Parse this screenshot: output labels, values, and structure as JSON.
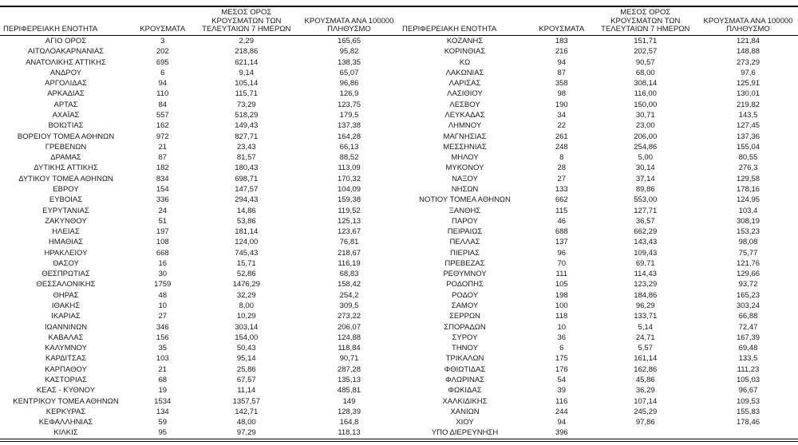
{
  "colors": {
    "text": "#1a1a1a",
    "border": "#000000",
    "background": "#ffffff"
  },
  "columns": {
    "region": "ΠΕΡΙΦΕΡΕΙΑΚΗ ΕΝΟΤΗΤΑ",
    "cases": "ΚΡΟΥΣΜΑΤΑ",
    "avg7_line1": "ΜΕΣΟΣ ΟΡΟΣ",
    "avg7_line2": "ΚΡΟΥΣΜΑΤΩΝ ΤΩΝ",
    "avg7_line3": "ΤΕΛΕΥΤΑΙΩΝ 7 ΗΜΕΡΩΝ",
    "per100k_line1": "ΚΡΟΥΣΜΑΤΑ ΑΝΑ 100000",
    "per100k_line2": "ΠΛΗΘΥΣΜΟ"
  },
  "left_table": {
    "rows": [
      {
        "region": "ΑΓΙΟ ΟΡΟΣ",
        "cases": "3",
        "avg7": "2,29",
        "per100k": "165,65"
      },
      {
        "region": "ΑΙΤΩΛΟΑΚΑΡΝΑΝΙΑΣ",
        "cases": "202",
        "avg7": "218,86",
        "per100k": "95,82"
      },
      {
        "region": "ΑΝΑΤΟΛΙΚΗΣ ΑΤΤΙΚΗΣ",
        "cases": "695",
        "avg7": "621,14",
        "per100k": "138,35"
      },
      {
        "region": "ΑΝΔΡΟΥ",
        "cases": "6",
        "avg7": "9,14",
        "per100k": "65,07"
      },
      {
        "region": "ΑΡΓΟΛΙΔΑΣ",
        "cases": "94",
        "avg7": "105,14",
        "per100k": "96,86"
      },
      {
        "region": "ΑΡΚΑΔΙΑΣ",
        "cases": "110",
        "avg7": "115,71",
        "per100k": "126,9"
      },
      {
        "region": "ΑΡΤΑΣ",
        "cases": "84",
        "avg7": "73,29",
        "per100k": "123,75"
      },
      {
        "region": "ΑΧΑΪΑΣ",
        "cases": "557",
        "avg7": "518,29",
        "per100k": "179,5"
      },
      {
        "region": "ΒΟΙΩΤΙΑΣ",
        "cases": "162",
        "avg7": "149,43",
        "per100k": "137,38"
      },
      {
        "region": "ΒΟΡΕΙΟΥ ΤΟΜΕΑ ΑΘΗΝΩΝ",
        "cases": "972",
        "avg7": "827,71",
        "per100k": "164,28"
      },
      {
        "region": "ΓΡΕΒΕΝΩΝ",
        "cases": "21",
        "avg7": "23,43",
        "per100k": "66,13"
      },
      {
        "region": "ΔΡΑΜΑΣ",
        "cases": "87",
        "avg7": "81,57",
        "per100k": "88,52"
      },
      {
        "region": "ΔΥΤΙΚΗΣ ΑΤΤΙΚΗΣ",
        "cases": "182",
        "avg7": "180,43",
        "per100k": "113,09"
      },
      {
        "region": "ΔΥΤΙΚΟΥ ΤΟΜΕΑ ΑΘΗΝΩΝ",
        "cases": "834",
        "avg7": "698,71",
        "per100k": "170,32"
      },
      {
        "region": "ΕΒΡΟΥ",
        "cases": "154",
        "avg7": "147,57",
        "per100k": "104,09"
      },
      {
        "region": "ΕΥΒΟΙΑΣ",
        "cases": "336",
        "avg7": "294,43",
        "per100k": "159,38"
      },
      {
        "region": "ΕΥΡΥΤΑΝΙΑΣ",
        "cases": "24",
        "avg7": "14,86",
        "per100k": "119,52"
      },
      {
        "region": "ΖΑΚΥΝΘΟΥ",
        "cases": "51",
        "avg7": "53,86",
        "per100k": "125,13"
      },
      {
        "region": "ΗΛΕΙΑΣ",
        "cases": "197",
        "avg7": "181,14",
        "per100k": "123,67"
      },
      {
        "region": "ΗΜΑΘΙΑΣ",
        "cases": "108",
        "avg7": "124,00",
        "per100k": "76,81"
      },
      {
        "region": "ΗΡΑΚΛΕΙΟΥ",
        "cases": "668",
        "avg7": "745,43",
        "per100k": "218,67"
      },
      {
        "region": "ΘΑΣΟΥ",
        "cases": "16",
        "avg7": "15,71",
        "per100k": "116,19"
      },
      {
        "region": "ΘΕΣΠΡΩΤΙΑΣ",
        "cases": "30",
        "avg7": "52,86",
        "per100k": "68,83"
      },
      {
        "region": "ΘΕΣΣΑΛΟΝΙΚΗΣ",
        "cases": "1759",
        "avg7": "1476,29",
        "per100k": "158,42"
      },
      {
        "region": "ΘΗΡΑΣ",
        "cases": "48",
        "avg7": "32,29",
        "per100k": "254,2"
      },
      {
        "region": "ΙΘΑΚΗΣ",
        "cases": "10",
        "avg7": "8,00",
        "per100k": "309,5"
      },
      {
        "region": "ΙΚΑΡΙΑΣ",
        "cases": "27",
        "avg7": "10,29",
        "per100k": "273,22"
      },
      {
        "region": "ΙΩΑΝΝΙΝΩΝ",
        "cases": "346",
        "avg7": "303,14",
        "per100k": "206,07"
      },
      {
        "region": "ΚΑΒΑΛΑΣ",
        "cases": "156",
        "avg7": "154,00",
        "per100k": "124,88"
      },
      {
        "region": "ΚΑΛΥΜΝΟΥ",
        "cases": "35",
        "avg7": "50,43",
        "per100k": "118,84"
      },
      {
        "region": "ΚΑΡΔΙΤΣΑΣ",
        "cases": "103",
        "avg7": "95,14",
        "per100k": "90,71"
      },
      {
        "region": "ΚΑΡΠΑΘΟΥ",
        "cases": "21",
        "avg7": "25,86",
        "per100k": "287,28"
      },
      {
        "region": "ΚΑΣΤΟΡΙΑΣ",
        "cases": "68",
        "avg7": "67,57",
        "per100k": "135,13"
      },
      {
        "region": "ΚΕΑΣ - ΚΥΘΝΟΥ",
        "cases": "19",
        "avg7": "11,14",
        "per100k": "485,81"
      },
      {
        "region": "ΚΕΝΤΡΙΚΟΥ ΤΟΜΕΑ ΑΘΗΝΩΝ",
        "cases": "1534",
        "avg7": "1357,57",
        "per100k": "149"
      },
      {
        "region": "ΚΕΡΚΥΡΑΣ",
        "cases": "134",
        "avg7": "142,71",
        "per100k": "128,39"
      },
      {
        "region": "ΚΕΦΑΛΛΗΝΙΑΣ",
        "cases": "59",
        "avg7": "48,00",
        "per100k": "164,8"
      },
      {
        "region": "ΚΙΛΚΙΣ",
        "cases": "95",
        "avg7": "97,29",
        "per100k": "118,13"
      }
    ]
  },
  "right_table": {
    "rows": [
      {
        "region": "ΚΟΖΑΝΗΣ",
        "cases": "183",
        "avg7": "151,71",
        "per100k": "121,84"
      },
      {
        "region": "ΚΟΡΙΝΘΙΑΣ",
        "cases": "216",
        "avg7": "202,57",
        "per100k": "148,88"
      },
      {
        "region": "ΚΩ",
        "cases": "94",
        "avg7": "90,57",
        "per100k": "273,29"
      },
      {
        "region": "ΛΑΚΩΝΙΑΣ",
        "cases": "87",
        "avg7": "68,00",
        "per100k": "97,6"
      },
      {
        "region": "ΛΑΡΙΣΑΣ",
        "cases": "358",
        "avg7": "308,14",
        "per100k": "125,91"
      },
      {
        "region": "ΛΑΣΙΘΙΟΥ",
        "cases": "98",
        "avg7": "116,00",
        "per100k": "130,01"
      },
      {
        "region": "ΛΕΣΒΟΥ",
        "cases": "190",
        "avg7": "150,00",
        "per100k": "219,82"
      },
      {
        "region": "ΛΕΥΚΑΔΑΣ",
        "cases": "34",
        "avg7": "30,71",
        "per100k": "143,5"
      },
      {
        "region": "ΛΗΜΝΟΥ",
        "cases": "22",
        "avg7": "23,00",
        "per100k": "127,45"
      },
      {
        "region": "ΜΑΓΝΗΣΙΑΣ",
        "cases": "261",
        "avg7": "206,00",
        "per100k": "137,36"
      },
      {
        "region": "ΜΕΣΣΗΝΙΑΣ",
        "cases": "248",
        "avg7": "254,86",
        "per100k": "155,04"
      },
      {
        "region": "ΜΗΛΟΥ",
        "cases": "8",
        "avg7": "5,00",
        "per100k": "80,55"
      },
      {
        "region": "ΜΥΚΟΝΟΥ",
        "cases": "28",
        "avg7": "30,14",
        "per100k": "276,3"
      },
      {
        "region": "ΝΑΞΟΥ",
        "cases": "27",
        "avg7": "37,14",
        "per100k": "129,58"
      },
      {
        "region": "ΝΗΣΩΝ",
        "cases": "133",
        "avg7": "89,86",
        "per100k": "178,16"
      },
      {
        "region": "ΝΟΤΙΟΥ ΤΟΜΕΑ ΑΘΗΝΩΝ",
        "cases": "662",
        "avg7": "553,00",
        "per100k": "124,95"
      },
      {
        "region": "ΞΑΝΘΗΣ",
        "cases": "115",
        "avg7": "127,71",
        "per100k": "103,4"
      },
      {
        "region": "ΠΑΡΟΥ",
        "cases": "46",
        "avg7": "36,57",
        "per100k": "308,19"
      },
      {
        "region": "ΠΕΙΡΑΙΩΣ",
        "cases": "688",
        "avg7": "662,29",
        "per100k": "153,23"
      },
      {
        "region": "ΠΕΛΛΑΣ",
        "cases": "137",
        "avg7": "143,43",
        "per100k": "98,08"
      },
      {
        "region": "ΠΙΕΡΙΑΣ",
        "cases": "96",
        "avg7": "109,43",
        "per100k": "75,77"
      },
      {
        "region": "ΠΡΕΒΕΖΑΣ",
        "cases": "70",
        "avg7": "69,71",
        "per100k": "121,76"
      },
      {
        "region": "ΡΕΘΥΜΝΟΥ",
        "cases": "111",
        "avg7": "114,43",
        "per100k": "129,66"
      },
      {
        "region": "ΡΟΔΟΠΗΣ",
        "cases": "105",
        "avg7": "123,29",
        "per100k": "93,72"
      },
      {
        "region": "ΡΟΔΟΥ",
        "cases": "198",
        "avg7": "184,86",
        "per100k": "165,23"
      },
      {
        "region": "ΣΑΜΟΥ",
        "cases": "100",
        "avg7": "96,29",
        "per100k": "303,24"
      },
      {
        "region": "ΣΕΡΡΩΝ",
        "cases": "118",
        "avg7": "133,71",
        "per100k": "66,88"
      },
      {
        "region": "ΣΠΟΡΑΔΩΝ",
        "cases": "10",
        "avg7": "5,14",
        "per100k": "72,47"
      },
      {
        "region": "ΣΥΡΟΥ",
        "cases": "36",
        "avg7": "24,71",
        "per100k": "167,39"
      },
      {
        "region": "ΤΗΝΟΥ",
        "cases": "6",
        "avg7": "5,57",
        "per100k": "69,48"
      },
      {
        "region": "ΤΡΙΚΑΛΩΝ",
        "cases": "175",
        "avg7": "161,14",
        "per100k": "133,5"
      },
      {
        "region": "ΦΘΙΩΤΙΔΑΣ",
        "cases": "176",
        "avg7": "162,86",
        "per100k": "111,23"
      },
      {
        "region": "ΦΛΩΡΙΝΑΣ",
        "cases": "54",
        "avg7": "45,86",
        "per100k": "105,03"
      },
      {
        "region": "ΦΩΚΙΔΑΣ",
        "cases": "39",
        "avg7": "36,29",
        "per100k": "96,67"
      },
      {
        "region": "ΧΑΛΚΙΔΙΚΗΣ",
        "cases": "116",
        "avg7": "107,14",
        "per100k": "109,53"
      },
      {
        "region": "ΧΑΝΙΩΝ",
        "cases": "244",
        "avg7": "245,29",
        "per100k": "155,83"
      },
      {
        "region": "ΧΙΟΥ",
        "cases": "94",
        "avg7": "97,86",
        "per100k": "178,46"
      },
      {
        "region": "ΥΠΟ ΔΙΕΡΕΥΝΗΣΗ",
        "cases": "396",
        "avg7": "",
        "per100k": ""
      }
    ]
  }
}
